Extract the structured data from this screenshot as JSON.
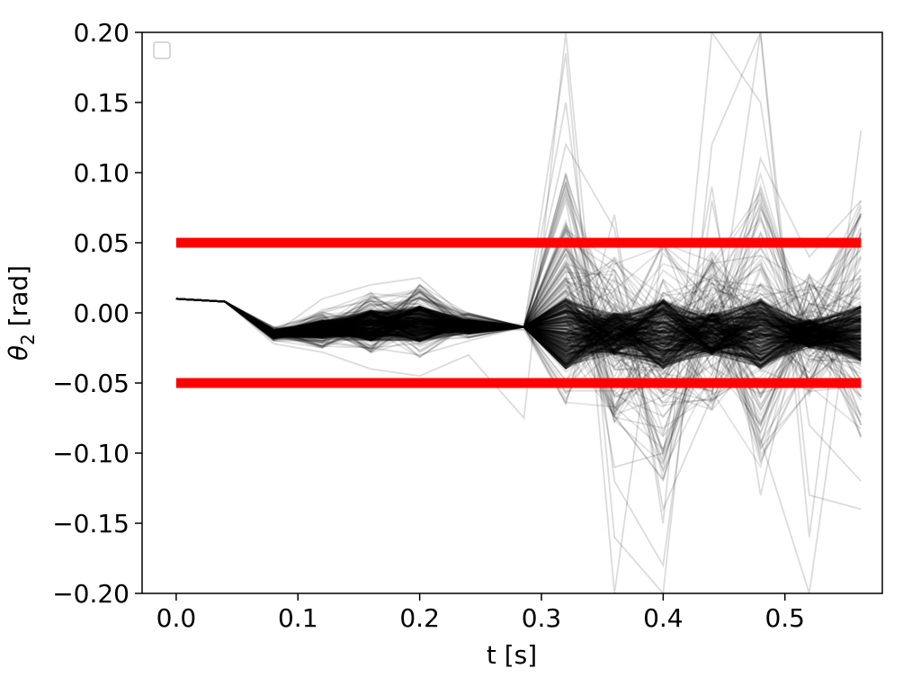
{
  "chart_data": {
    "type": "line",
    "title": "",
    "xlabel": "t [s]",
    "ylabel_symbol": "θ",
    "ylabel_subscript": "2",
    "ylabel_unit": "[rad]",
    "xlim": [
      -0.028,
      0.58
    ],
    "ylim": [
      -0.2,
      0.2
    ],
    "x_ticks": [
      0.0,
      0.1,
      0.2,
      0.3,
      0.4,
      0.5
    ],
    "x_tick_labels": [
      "0.0",
      "0.1",
      "0.2",
      "0.3",
      "0.4",
      "0.5"
    ],
    "y_ticks": [
      0.2,
      0.15,
      0.1,
      0.05,
      0.0,
      -0.05,
      -0.1,
      -0.15,
      -0.2
    ],
    "y_tick_labels": [
      "0.20",
      "0.15",
      "0.10",
      "0.05",
      "0.00",
      "−0.05",
      "−0.10",
      "−0.15",
      "−0.20"
    ],
    "grid": false,
    "legend": {
      "placement": "top-left",
      "entries": []
    },
    "bounds": [
      {
        "x": [
          0.0,
          0.5625
        ],
        "y": 0.05,
        "color": "#ff0000"
      },
      {
        "x": [
          0.0,
          0.5625
        ],
        "y": -0.05,
        "color": "#ff0000"
      }
    ],
    "trajectory_color": "#000000",
    "trajectory_times": [
      0.0,
      0.04,
      0.08,
      0.12,
      0.16,
      0.2,
      0.24,
      0.2857,
      0.32,
      0.36,
      0.4,
      0.44,
      0.48,
      0.52,
      0.5625
    ],
    "trajectory_band": {
      "core_low": [
        0.01,
        0.008,
        -0.018,
        -0.018,
        -0.02,
        -0.021,
        -0.015,
        -0.01,
        -0.04,
        -0.03,
        -0.04,
        -0.03,
        -0.04,
        -0.025,
        -0.035
      ],
      "core_high": [
        0.01,
        0.008,
        -0.012,
        -0.005,
        0.002,
        0.005,
        -0.005,
        -0.01,
        0.01,
        0.0,
        0.01,
        0.0,
        0.01,
        -0.005,
        0.005
      ],
      "outer_low": [
        0.01,
        0.008,
        -0.02,
        -0.025,
        -0.03,
        -0.032,
        -0.018,
        -0.01,
        -0.065,
        -0.08,
        -0.12,
        -0.07,
        -0.11,
        -0.06,
        -0.09
      ],
      "outer_high": [
        0.01,
        0.008,
        -0.01,
        0.003,
        0.015,
        0.02,
        0.0,
        -0.01,
        0.1,
        0.04,
        0.06,
        0.05,
        0.1,
        0.03,
        0.08
      ]
    },
    "trajectory_outliers": [
      {
        "y": [
          0.01,
          0.008,
          -0.022,
          -0.028,
          -0.04,
          -0.045,
          -0.03,
          -0.075,
          0.2,
          -0.16,
          -0.2,
          0.12,
          0.2,
          -0.13,
          -0.14
        ]
      },
      {
        "y": [
          0.01,
          0.008,
          -0.015,
          0.01,
          0.02,
          0.025,
          -0.005,
          -0.01,
          0.185,
          -0.2,
          0.05,
          -0.04,
          0.2,
          -0.16,
          0.13
        ]
      },
      {
        "y": [
          0.01,
          0.008,
          -0.02,
          -0.02,
          -0.025,
          -0.03,
          -0.02,
          -0.01,
          0.15,
          -0.12,
          -0.18,
          0.08,
          -0.09,
          -0.2,
          0.06
        ]
      },
      {
        "y": [
          0.01,
          0.008,
          -0.018,
          -0.01,
          0.005,
          0.01,
          -0.01,
          -0.012,
          -0.065,
          0.07,
          -0.15,
          0.2,
          0.15,
          -0.08,
          -0.12
        ]
      },
      {
        "y": [
          0.01,
          0.008,
          -0.016,
          -0.015,
          -0.02,
          -0.01,
          -0.008,
          -0.008,
          0.08,
          -0.11,
          -0.1,
          0.09,
          -0.13,
          0.02,
          -0.08
        ]
      },
      {
        "y": [
          0.01,
          0.008,
          -0.014,
          0.0,
          0.01,
          0.015,
          -0.012,
          -0.012,
          0.12,
          0.06,
          -0.14,
          -0.06,
          0.11,
          0.04,
          0.08
        ]
      }
    ]
  }
}
